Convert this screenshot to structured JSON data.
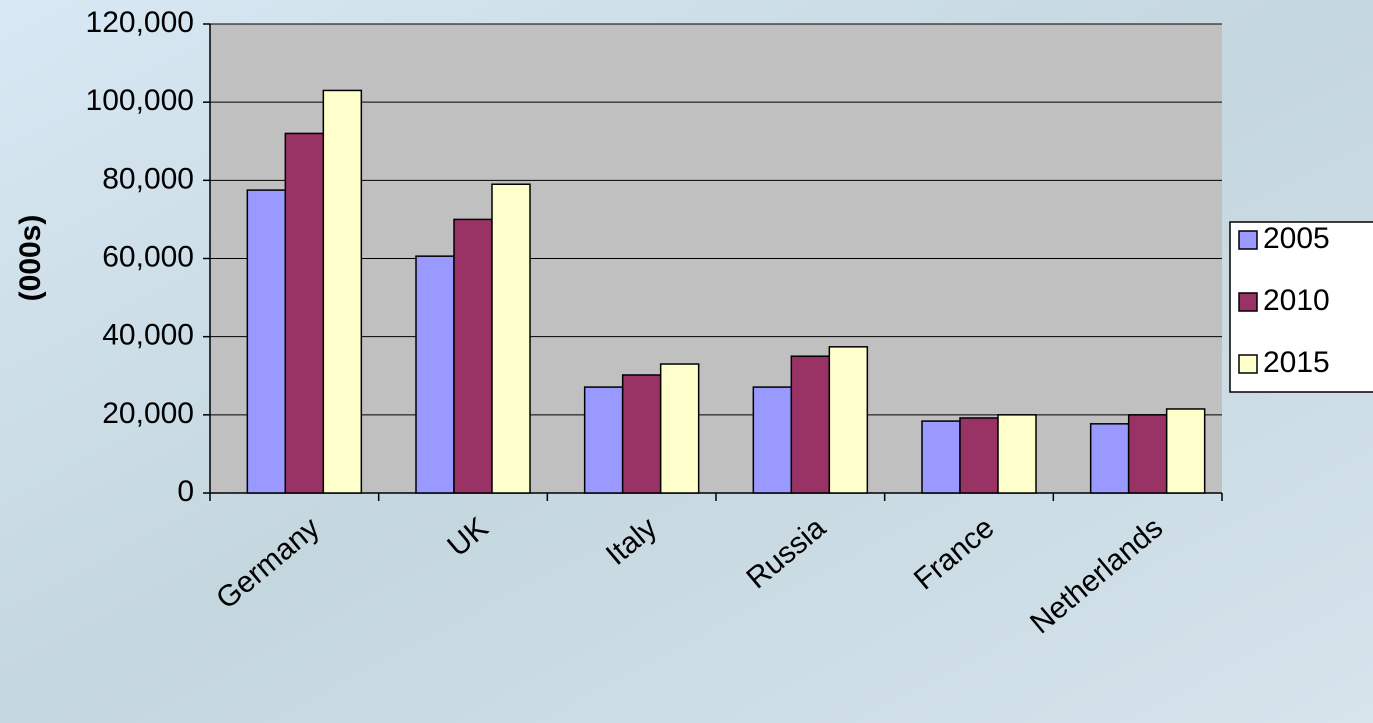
{
  "chart_data": {
    "type": "bar",
    "y_label": "(000s)",
    "categories": [
      "Germany",
      "UK",
      "Italy",
      "Russia",
      "France",
      "Netherlands"
    ],
    "series": [
      {
        "name": "2005",
        "color": "#9999ff",
        "values": [
          77500,
          60600,
          27100,
          27100,
          18400,
          17700
        ]
      },
      {
        "name": "2010",
        "color": "#993366",
        "values": [
          92000,
          70000,
          30200,
          35000,
          19200,
          20000
        ]
      },
      {
        "name": "2015",
        "color": "#ffffcc",
        "values": [
          103000,
          79000,
          33000,
          37400,
          20000,
          21500
        ]
      }
    ],
    "ylim": [
      0,
      120000
    ],
    "yticks": [
      0,
      {
        "value": 20000,
        "label": "20,000"
      },
      {
        "value": 40000,
        "label": "40,000"
      },
      {
        "value": 60000,
        "label": "60,000"
      },
      {
        "value": 80000,
        "label": "80,000"
      },
      {
        "value": 100000,
        "label": "100,000"
      },
      {
        "value": 120000,
        "label": "120,000"
      }
    ],
    "grid": true,
    "plot_color": "#c0c0c0"
  }
}
